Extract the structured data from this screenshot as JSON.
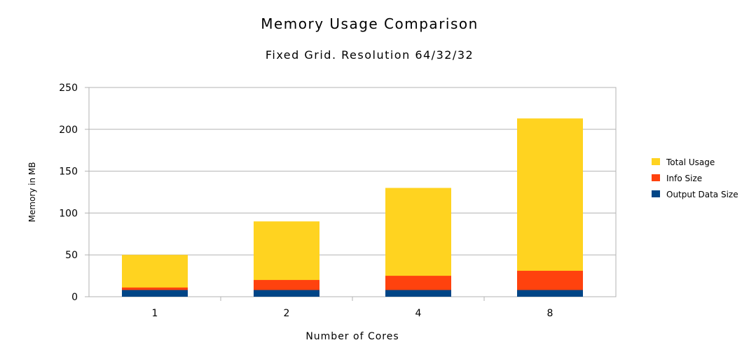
{
  "chart_data": {
    "type": "bar",
    "stacked": true,
    "title": "Memory Usage Comparison",
    "subtitle": "Fixed Grid. Resolution 64/32/32",
    "xlabel": "Number of Cores",
    "ylabel": "Memory in MB",
    "categories": [
      "1",
      "2",
      "4",
      "8"
    ],
    "ylim": [
      0,
      250
    ],
    "yticks": [
      0,
      50,
      100,
      150,
      200,
      250
    ],
    "grid": true,
    "legend_position": "right",
    "series": [
      {
        "name": "Output Data Size",
        "color": "#004586",
        "values": [
          8,
          8,
          8,
          8
        ]
      },
      {
        "name": "Info Size",
        "color": "#ff420e",
        "values": [
          11,
          20,
          25,
          31
        ]
      },
      {
        "name": "Total Usage",
        "color": "#ffd320",
        "values": [
          50,
          90,
          130,
          213
        ]
      }
    ],
    "legend_order": [
      "Total Usage",
      "Info Size",
      "Output Data Size"
    ]
  }
}
